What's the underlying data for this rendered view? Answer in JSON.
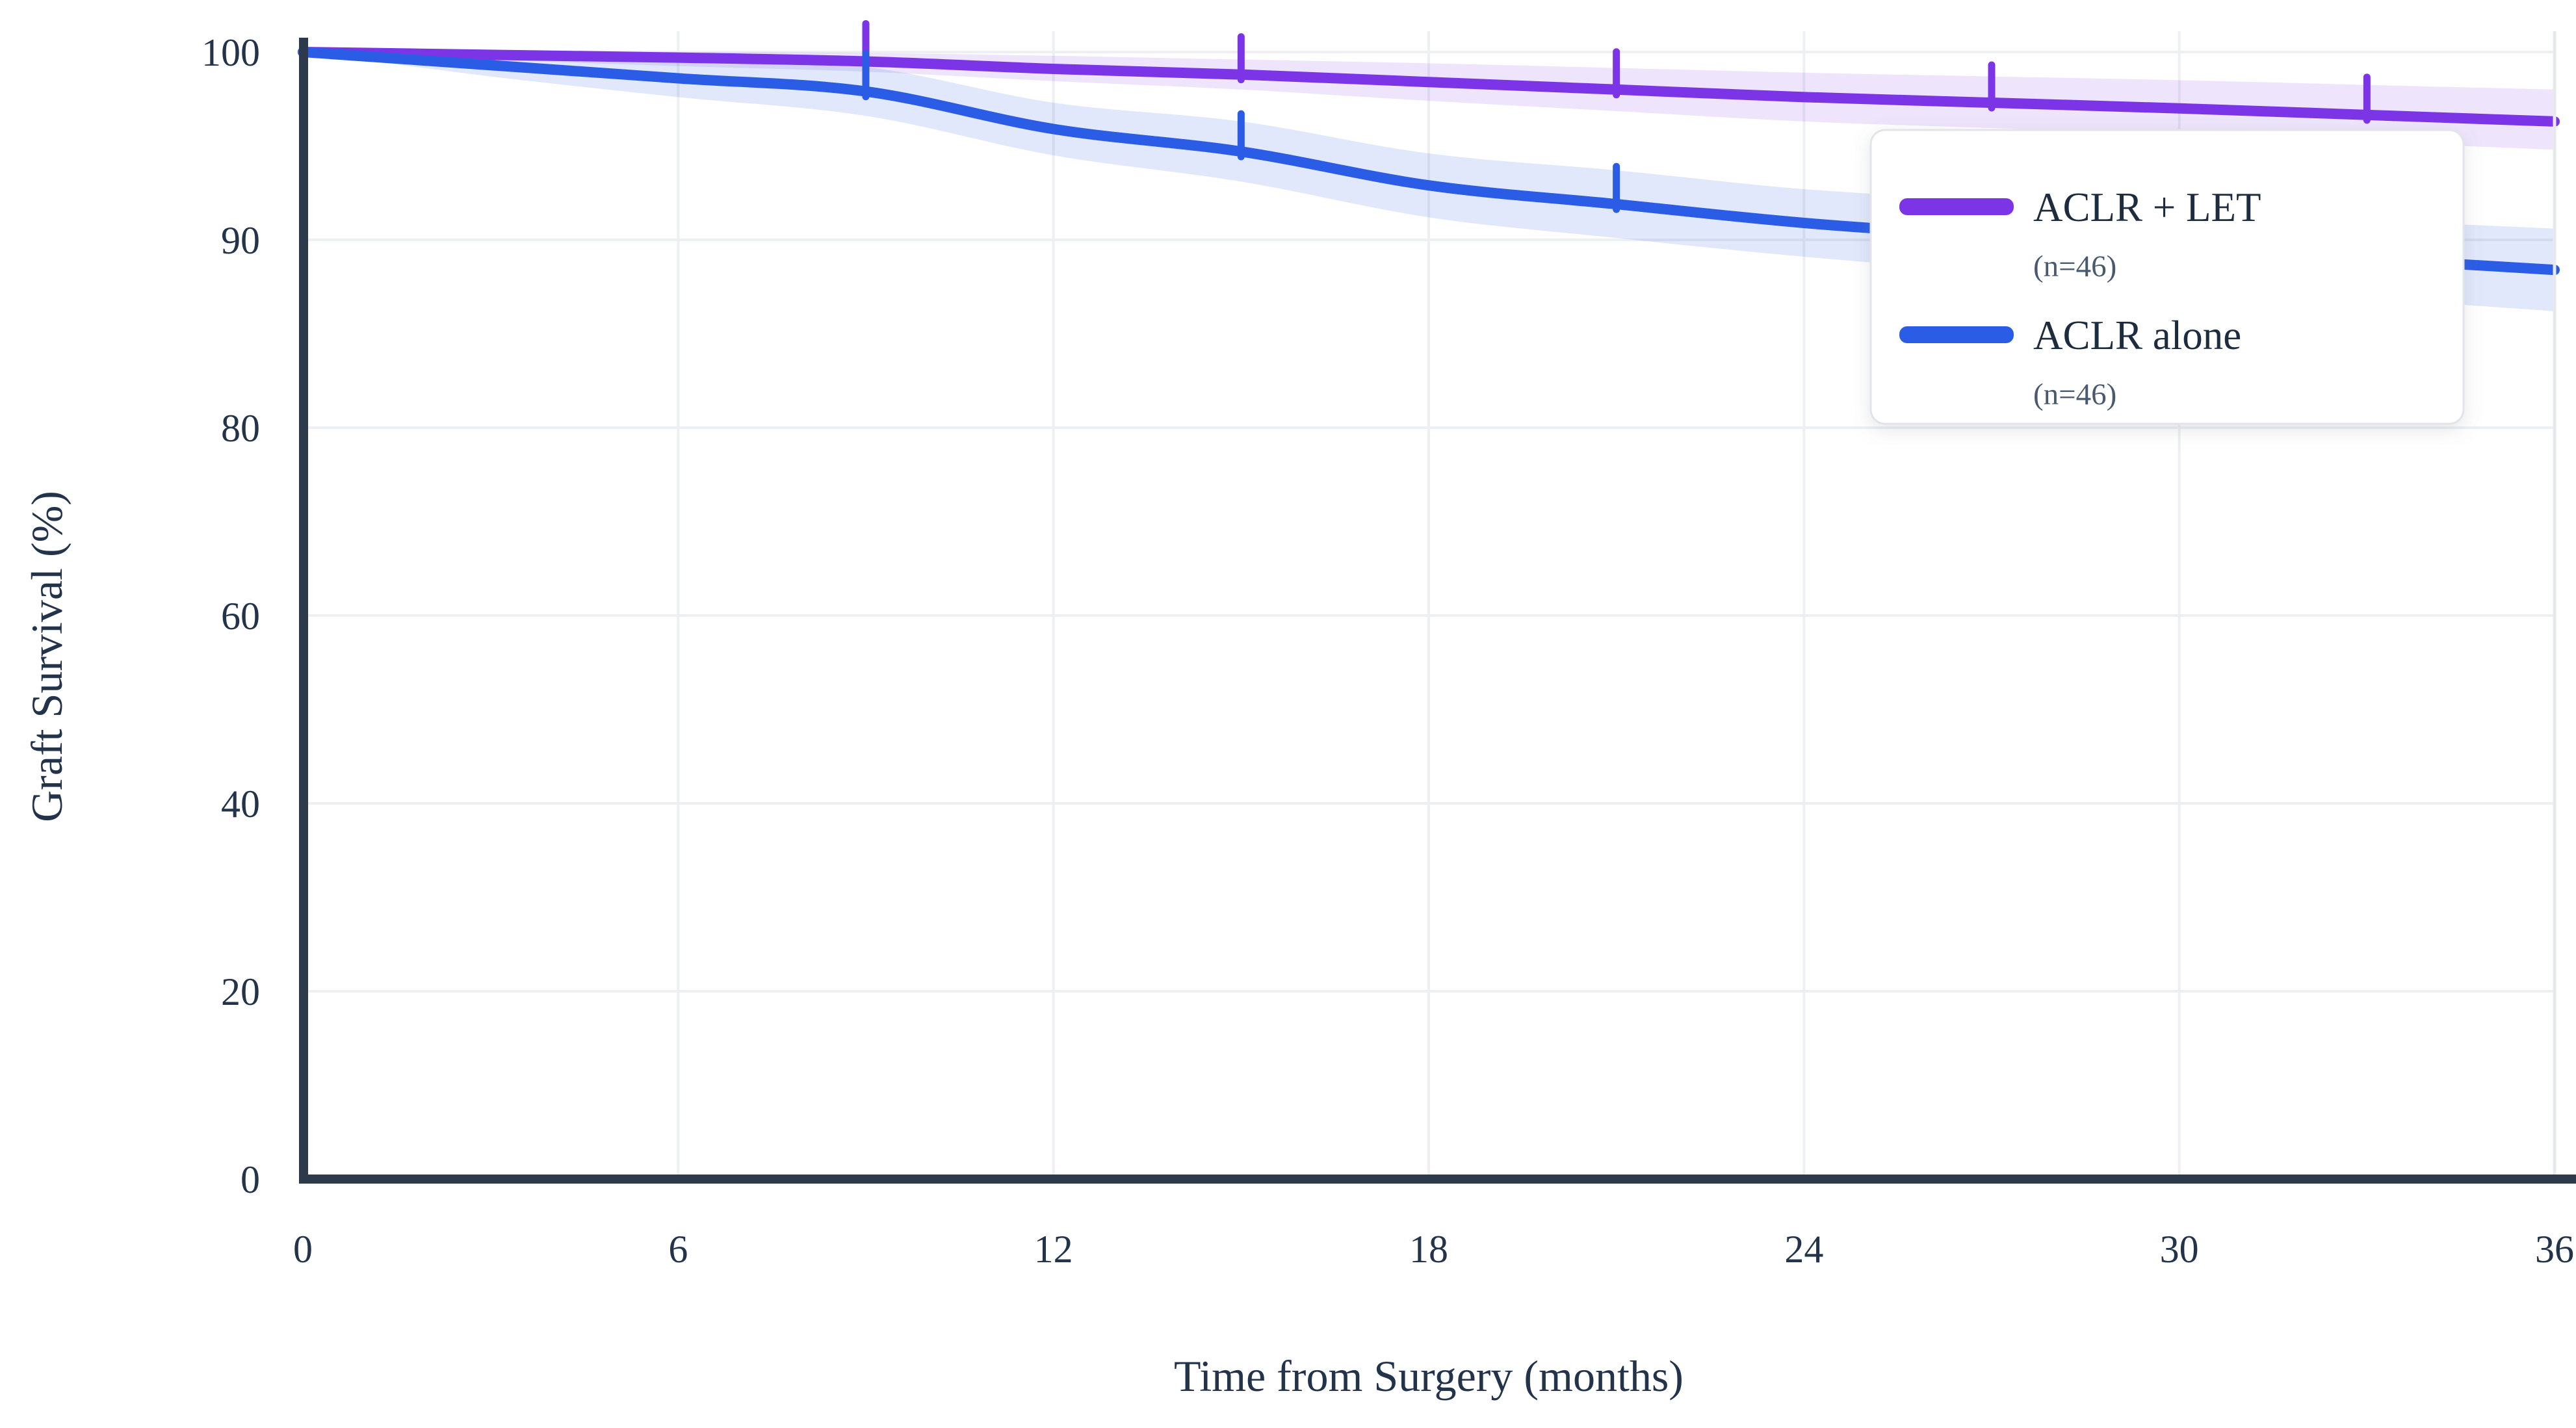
{
  "figure": {
    "background": "#ffffff",
    "grid_color": "#edeff2",
    "spine_color": "#2c3a4c",
    "plot_border_color": "#e7e9ec",
    "text_color": "#22334a"
  },
  "axes": {
    "x_title": "Time from Surgery (months)",
    "y_title": "Graft Survival (%)",
    "x_tick_labels": [
      "0",
      "6",
      "12",
      "18",
      "24",
      "30",
      "36"
    ],
    "y_tick_labels": [
      "100",
      "90",
      "80",
      "60",
      "40",
      "20",
      "0"
    ]
  },
  "legend": {
    "items": [
      {
        "label": "ACLR + LET",
        "sub": "(n=46)",
        "color": "#7c35e6"
      },
      {
        "label": "ACLR alone",
        "sub": "(n=46)",
        "color": "#2b5ce6"
      }
    ]
  },
  "chart_data": {
    "type": "line",
    "subtype": "kaplan-meier-smoothed-with-ci",
    "title": "",
    "xlabel": "Time from Surgery (months)",
    "ylabel": "Graft Survival (%)",
    "x": [
      0,
      3,
      6,
      9,
      12,
      15,
      18,
      21,
      24,
      27,
      30,
      33,
      36
    ],
    "xlim": [
      0,
      36
    ],
    "x_ticks": [
      0,
      6,
      12,
      18,
      24,
      30,
      36
    ],
    "y_ticks": [
      100,
      90,
      80,
      60,
      40,
      20,
      0
    ],
    "axis_note": "y-axis has equal tick spacing: 10-unit steps from 100 to 80, 20-unit steps from 80 to 0 (top region visually expanded)",
    "grid": true,
    "legend_position": "top-right",
    "series": [
      {
        "name": "ACLR + LET",
        "n_label": "(n=46)",
        "color": "#7c35e6",
        "band_color": "rgba(124,53,230,0.13)",
        "values": [
          100,
          99.85,
          99.7,
          99.5,
          99.1,
          98.8,
          98.4,
          98.0,
          97.6,
          97.3,
          97.0,
          96.65,
          96.3
        ],
        "ci_upper": [
          100,
          100,
          100,
          99.95,
          99.8,
          99.6,
          99.4,
          99.15,
          98.9,
          98.7,
          98.5,
          98.25,
          98.0
        ],
        "ci_lower": [
          100,
          99.6,
          99.25,
          98.95,
          98.45,
          98.0,
          97.4,
          96.85,
          96.3,
          95.95,
          95.6,
          95.2,
          94.8
        ],
        "censor_marks_months": [
          9,
          15,
          21,
          27,
          33
        ]
      },
      {
        "name": "ACLR alone",
        "n_label": "(n=46)",
        "color": "#2b5ce6",
        "band_color": "rgba(43,92,230,0.14)",
        "values": [
          100,
          99.3,
          98.6,
          97.9,
          95.9,
          94.7,
          92.9,
          91.9,
          90.9,
          90.2,
          89.6,
          89.0,
          88.4
        ],
        "ci_upper": [
          100,
          100,
          99.6,
          99.2,
          97.3,
          96.3,
          94.6,
          93.7,
          92.7,
          92.1,
          91.55,
          91.05,
          90.6
        ],
        "ci_lower": [
          100,
          98.7,
          97.6,
          96.6,
          94.5,
          93.1,
          91.2,
          90.1,
          89.1,
          88.3,
          87.6,
          86.9,
          86.2
        ],
        "censor_marks_months": [
          9,
          15,
          21
        ]
      }
    ]
  }
}
